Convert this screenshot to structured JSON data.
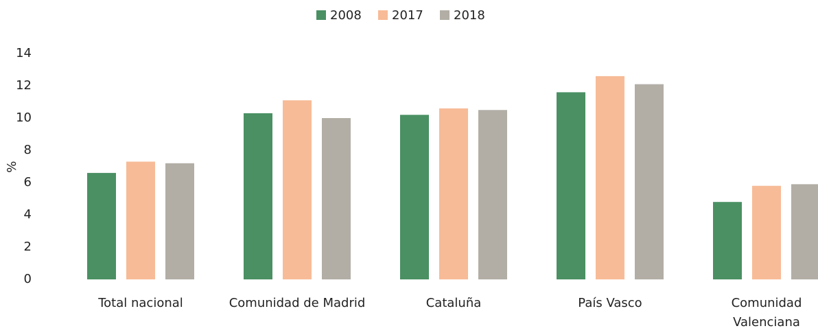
{
  "chart_data": {
    "type": "bar",
    "y_label": "%",
    "categories": [
      "Total nacional",
      "Comunidad de Madrid",
      "Cataluña",
      "País Vasco",
      "Comunidad Valenciana"
    ],
    "series": [
      {
        "name": "2008",
        "color": "#4a9063",
        "values": [
          6.6,
          10.3,
          10.2,
          11.6,
          4.8
        ]
      },
      {
        "name": "2017",
        "color": "#f7bb97",
        "values": [
          7.3,
          11.1,
          10.6,
          12.6,
          5.8
        ]
      },
      {
        "name": "2018",
        "color": "#b2aea6",
        "values": [
          7.2,
          10.0,
          10.5,
          12.1,
          5.9
        ]
      }
    ],
    "ylim": [
      0,
      14
    ],
    "yticks": [
      0,
      2,
      4,
      6,
      8,
      10,
      12,
      14
    ],
    "grid": false,
    "legend": "top"
  }
}
